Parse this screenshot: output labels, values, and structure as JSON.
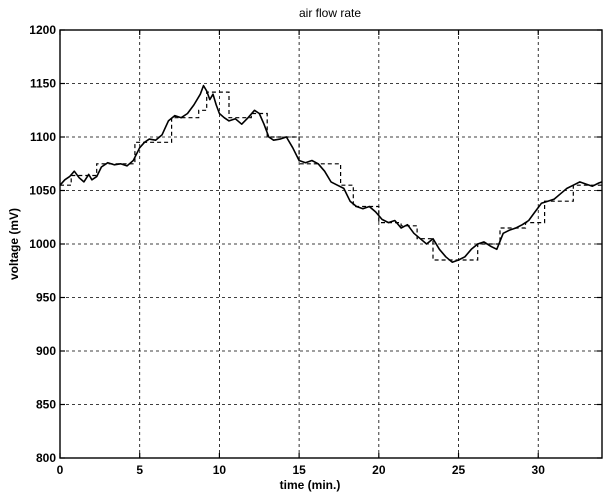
{
  "chart_data": {
    "type": "line",
    "title": "air flow rate",
    "xlabel": "time (min.)",
    "ylabel": "voltage (mV)",
    "xlim": [
      0,
      34
    ],
    "ylim": [
      800,
      1200
    ],
    "grid": true,
    "xticks": [
      0,
      5,
      10,
      15,
      20,
      25,
      30
    ],
    "yticks": [
      800,
      850,
      900,
      950,
      1000,
      1050,
      1100,
      1150,
      1200
    ],
    "series": [
      {
        "style": "solid",
        "x": [
          0,
          0.3,
          0.6,
          0.9,
          1.2,
          1.5,
          1.8,
          2.0,
          2.3,
          2.6,
          3.0,
          3.4,
          3.8,
          4.2,
          4.6,
          5.0,
          5.3,
          5.6,
          6.0,
          6.4,
          6.8,
          7.2,
          7.6,
          8.0,
          8.4,
          8.8,
          9.0,
          9.2,
          9.4,
          9.6,
          9.8,
          10.0,
          10.3,
          10.6,
          11.0,
          11.4,
          11.8,
          12.2,
          12.5,
          12.8,
          13.1,
          13.4,
          13.8,
          14.2,
          14.6,
          15.0,
          15.4,
          15.8,
          16.2,
          16.6,
          17.0,
          17.4,
          17.8,
          18.2,
          18.6,
          19.0,
          19.4,
          19.8,
          20.2,
          20.6,
          21.0,
          21.4,
          21.8,
          22.2,
          22.6,
          23.0,
          23.4,
          23.8,
          24.2,
          24.6,
          25.0,
          25.4,
          25.8,
          26.2,
          26.6,
          27.0,
          27.4,
          27.8,
          28.2,
          28.6,
          29.0,
          29.4,
          29.8,
          30.2,
          30.6,
          31.0,
          31.4,
          31.8,
          32.2,
          32.6,
          33.0,
          33.4,
          33.8,
          34.0
        ],
        "values": [
          1055,
          1060,
          1063,
          1068,
          1062,
          1058,
          1065,
          1060,
          1063,
          1072,
          1076,
          1074,
          1075,
          1073,
          1078,
          1090,
          1095,
          1098,
          1097,
          1102,
          1115,
          1120,
          1118,
          1122,
          1130,
          1140,
          1148,
          1143,
          1135,
          1140,
          1130,
          1122,
          1118,
          1115,
          1117,
          1112,
          1118,
          1125,
          1122,
          1112,
          1100,
          1097,
          1098,
          1100,
          1090,
          1078,
          1076,
          1078,
          1075,
          1068,
          1058,
          1055,
          1052,
          1040,
          1035,
          1033,
          1035,
          1030,
          1023,
          1020,
          1022,
          1015,
          1018,
          1010,
          1005,
          1000,
          1005,
          995,
          988,
          983,
          985,
          988,
          995,
          1000,
          1002,
          998,
          995,
          1010,
          1013,
          1015,
          1018,
          1022,
          1030,
          1038,
          1040,
          1042,
          1047,
          1052,
          1055,
          1058,
          1056,
          1054,
          1057,
          1058
        ]
      },
      {
        "style": "dashed",
        "x": [
          0,
          0.7,
          0.7,
          2.3,
          2.3,
          4.7,
          4.7,
          7.0,
          7.0,
          8.7,
          8.7,
          9.2,
          9.2,
          10.6,
          10.6,
          12.0,
          12.0,
          13.0,
          13.0,
          15.0,
          15.0,
          17.6,
          17.6,
          18.4,
          18.4,
          20.0,
          20.0,
          21.4,
          21.4,
          22.4,
          22.4,
          23.4,
          23.4,
          26.2,
          26.2,
          27.6,
          27.6,
          29.2,
          29.2,
          30.4,
          30.4,
          32.2,
          32.2,
          34.0
        ],
        "values": [
          1055,
          1055,
          1064,
          1064,
          1075,
          1075,
          1095,
          1095,
          1118,
          1118,
          1125,
          1125,
          1142,
          1142,
          1118,
          1118,
          1122,
          1122,
          1100,
          1100,
          1075,
          1075,
          1055,
          1055,
          1035,
          1035,
          1020,
          1020,
          1017,
          1017,
          1005,
          1005,
          985,
          985,
          1000,
          1000,
          1015,
          1015,
          1020,
          1020,
          1040,
          1040,
          1055,
          1055
        ]
      }
    ]
  }
}
